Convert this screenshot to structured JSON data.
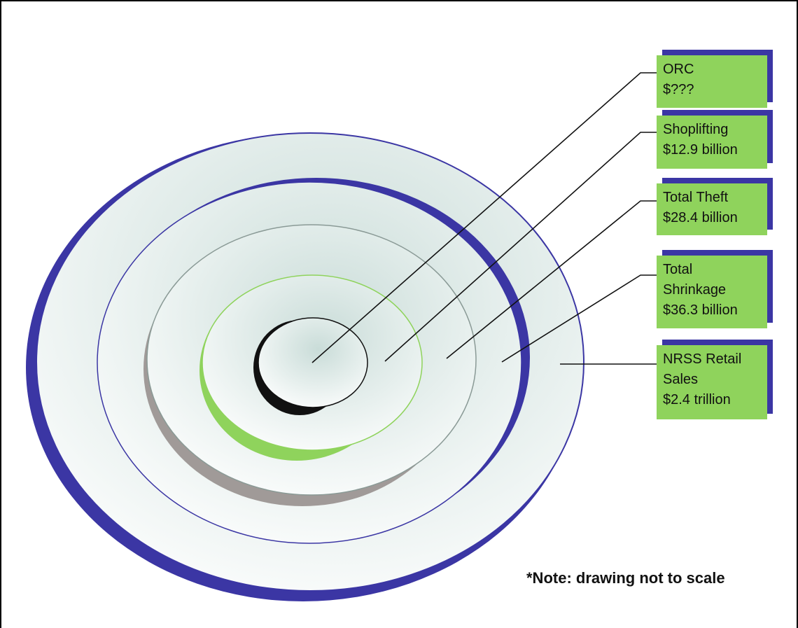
{
  "labels": {
    "orc": {
      "line1": "ORC",
      "line2": "$???"
    },
    "shoplifting": {
      "line1": "Shoplifting",
      "line2": "$12.9 billion"
    },
    "total_theft": {
      "line1": "Total Theft",
      "line2": "$28.4 billion"
    },
    "total_shrinkage": {
      "line1": "Total",
      "line2": "Shrinkage",
      "line3": "$36.3 billion"
    },
    "nrss_retail_sales": {
      "line1": "NRSS Retail",
      "line2": "Sales",
      "line3": "$2.4 trillion"
    }
  },
  "note": "*Note: drawing not to scale",
  "colors": {
    "label_fill": "#8fd35c",
    "label_shadow": "#3b36a4",
    "outer_ring": "#3b36a4",
    "shrinkage_ring": "#3b36a4",
    "theft_ring": "#a09a98",
    "shoplifting_ring": "#8fd35c",
    "orc_ring": "#111111",
    "disc_fill": "#eef4f2"
  }
}
